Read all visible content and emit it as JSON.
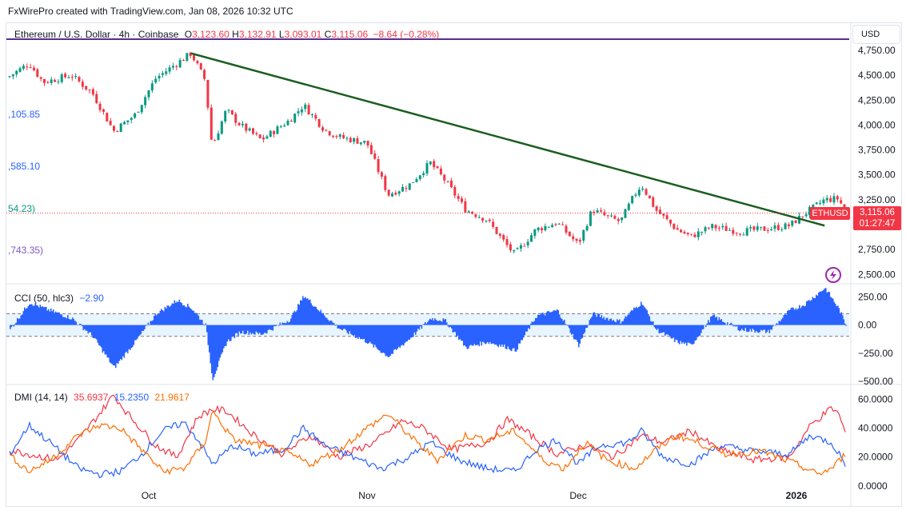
{
  "credit": "FxWirePro created with TradingView.com, Jan 08, 2026 10:32 UTC",
  "header": {
    "symbol": "Ethereum / U.S. Dollar · 4h · Coinbase",
    "o_label": "O",
    "o_value": "3,123.60",
    "h_label": "H",
    "h_value": "3,132.91",
    "l_label": "L",
    "l_value": "3,093.01",
    "c_label": "C",
    "c_value": "3,115.06",
    "change": "−8.64 (−0.28%)"
  },
  "currency_button": "USD",
  "price_tag": {
    "symbol": "ETHUSD",
    "price": "3,115.06",
    "countdown": "01:27:47"
  },
  "left_levels": [
    {
      "text": ",105.85",
      "color": "#2962ff"
    },
    {
      "text": ",585.10",
      "color": "#2962ff"
    },
    {
      "text": "54.23)",
      "color": "#089981"
    },
    {
      "text": ",743.35)",
      "color": "#7e57c2"
    }
  ],
  "cci_header": {
    "name": "CCI (50, hlc3)",
    "value": "−2.90",
    "value_color": "#2962ff"
  },
  "dmi_header": {
    "name": "DMI (14, 14)",
    "adx": "35.6937",
    "adx_color": "#f23645",
    "plus_di": "15.2350",
    "plus_di_color": "#2962ff",
    "minus_di": "21.9617",
    "minus_di_color": "#ff6d00"
  },
  "colors": {
    "up": "#089981",
    "down": "#f23645",
    "trendline": "#1b5e20",
    "cci": "#2962ff",
    "hline": "#5b2d8e"
  },
  "chart_data": {
    "type": "candlestick",
    "price_axis": {
      "ticks": [
        2500,
        2750,
        3000,
        3250,
        3500,
        3750,
        4000,
        4250,
        4500,
        4750
      ],
      "tick_labels": [
        "2,500.00",
        "2,750.00",
        "3,000.00",
        "3,250.00",
        "3,500.00",
        "3,750.00",
        "4,000.00",
        "4,250.00",
        "4,500.00",
        "4,750.00"
      ],
      "ylim": [
        2430,
        4790
      ]
    },
    "time_axis": {
      "labels": [
        "Oct",
        "Nov",
        "Dec",
        "2026"
      ]
    },
    "price_path": [
      {
        "t": "Sep 11",
        "p": 4480
      },
      {
        "t": "Sep 14",
        "p": 4620
      },
      {
        "t": "Sep 16",
        "p": 4430
      },
      {
        "t": "Sep 20",
        "p": 4500
      },
      {
        "t": "Sep 23",
        "p": 4320
      },
      {
        "t": "Sep 26",
        "p": 3940
      },
      {
        "t": "Sep 29",
        "p": 4100
      },
      {
        "t": "Oct 2",
        "p": 4470
      },
      {
        "t": "Oct 5",
        "p": 4620
      },
      {
        "t": "Oct 7",
        "p": 4720
      },
      {
        "t": "Oct 9",
        "p": 4450
      },
      {
        "t": "Oct 10",
        "p": 3780
      },
      {
        "t": "Oct 12",
        "p": 4150
      },
      {
        "t": "Oct 14",
        "p": 4000
      },
      {
        "t": "Oct 17",
        "p": 3850
      },
      {
        "t": "Oct 21",
        "p": 4050
      },
      {
        "t": "Oct 23",
        "p": 4200
      },
      {
        "t": "Oct 26",
        "p": 3950
      },
      {
        "t": "Oct 28",
        "p": 3880
      },
      {
        "t": "Nov 1",
        "p": 3820
      },
      {
        "t": "Nov 4",
        "p": 3300
      },
      {
        "t": "Nov 7",
        "p": 3400
      },
      {
        "t": "Nov 10",
        "p": 3620
      },
      {
        "t": "Nov 12",
        "p": 3450
      },
      {
        "t": "Nov 15",
        "p": 3150
      },
      {
        "t": "Nov 18",
        "p": 3050
      },
      {
        "t": "Nov 21",
        "p": 2780
      },
      {
        "t": "Nov 22",
        "p": 2700
      },
      {
        "t": "Nov 25",
        "p": 2950
      },
      {
        "t": "Nov 28",
        "p": 3020
      },
      {
        "t": "Dec 1",
        "p": 2800
      },
      {
        "t": "Dec 3",
        "p": 3150
      },
      {
        "t": "Dec 5",
        "p": 3080
      },
      {
        "t": "Dec 7",
        "p": 3030
      },
      {
        "t": "Dec 9",
        "p": 3300
      },
      {
        "t": "Dec 10",
        "p": 3400
      },
      {
        "t": "Dec 12",
        "p": 3150
      },
      {
        "t": "Dec 15",
        "p": 2950
      },
      {
        "t": "Dec 17",
        "p": 2880
      },
      {
        "t": "Dec 20",
        "p": 2980
      },
      {
        "t": "Dec 24",
        "p": 2930
      },
      {
        "t": "Dec 28",
        "p": 2960
      },
      {
        "t": "Dec 31",
        "p": 2990
      },
      {
        "t": "Jan 2",
        "p": 3100
      },
      {
        "t": "Jan 5",
        "p": 3250
      },
      {
        "t": "Jan 7",
        "p": 3260
      },
      {
        "t": "Jan 8",
        "p": 3115
      }
    ],
    "trendline": {
      "from": {
        "t": "Oct 7",
        "p": 4720
      },
      "to": {
        "t": "Jan 5",
        "p": 2990
      }
    },
    "last_price_line": 3115.06,
    "cci": {
      "ticks": [
        250,
        0,
        -250,
        -500
      ],
      "tick_labels": [
        "250.00",
        "0.00",
        "−250.00",
        "−500.00"
      ],
      "ylim": [
        -520,
        330
      ],
      "band": [
        -100,
        100
      ],
      "path": [
        {
          "t": "Sep 11",
          "v": -60
        },
        {
          "t": "Sep 14",
          "v": 200
        },
        {
          "t": "Sep 16",
          "v": 150
        },
        {
          "t": "Sep 20",
          "v": 60
        },
        {
          "t": "Sep 23",
          "v": -100
        },
        {
          "t": "Sep 26",
          "v": -380
        },
        {
          "t": "Sep 29",
          "v": -150
        },
        {
          "t": "Oct 2",
          "v": 100
        },
        {
          "t": "Oct 5",
          "v": 220
        },
        {
          "t": "Oct 7",
          "v": 150
        },
        {
          "t": "Oct 9",
          "v": 0
        },
        {
          "t": "Oct 10",
          "v": -480
        },
        {
          "t": "Oct 12",
          "v": -150
        },
        {
          "t": "Oct 14",
          "v": -60
        },
        {
          "t": "Oct 17",
          "v": -80
        },
        {
          "t": "Oct 21",
          "v": 50
        },
        {
          "t": "Oct 23",
          "v": 260
        },
        {
          "t": "Oct 26",
          "v": 80
        },
        {
          "t": "Oct 28",
          "v": -30
        },
        {
          "t": "Nov 1",
          "v": -150
        },
        {
          "t": "Nov 4",
          "v": -280
        },
        {
          "t": "Nov 7",
          "v": -120
        },
        {
          "t": "Nov 10",
          "v": 60
        },
        {
          "t": "Nov 12",
          "v": 40
        },
        {
          "t": "Nov 15",
          "v": -200
        },
        {
          "t": "Nov 18",
          "v": -150
        },
        {
          "t": "Nov 21",
          "v": -200
        },
        {
          "t": "Nov 22",
          "v": -230
        },
        {
          "t": "Nov 25",
          "v": 80
        },
        {
          "t": "Nov 28",
          "v": 130
        },
        {
          "t": "Dec 1",
          "v": -180
        },
        {
          "t": "Dec 3",
          "v": 100
        },
        {
          "t": "Dec 5",
          "v": 60
        },
        {
          "t": "Dec 7",
          "v": 30
        },
        {
          "t": "Dec 9",
          "v": 150
        },
        {
          "t": "Dec 10",
          "v": 200
        },
        {
          "t": "Dec 12",
          "v": -40
        },
        {
          "t": "Dec 15",
          "v": -150
        },
        {
          "t": "Dec 17",
          "v": -180
        },
        {
          "t": "Dec 20",
          "v": 80
        },
        {
          "t": "Dec 24",
          "v": -40
        },
        {
          "t": "Dec 28",
          "v": -60
        },
        {
          "t": "Dec 31",
          "v": 130
        },
        {
          "t": "Jan 2",
          "v": 180
        },
        {
          "t": "Jan 5",
          "v": 330
        },
        {
          "t": "Jan 7",
          "v": 140
        },
        {
          "t": "Jan 8",
          "v": -3
        }
      ]
    },
    "dmi": {
      "ticks": [
        0,
        20,
        40,
        60
      ],
      "tick_labels": [
        "0.0000",
        "20.0000",
        "40.0000",
        "60.0000"
      ],
      "ylim": [
        -4,
        68
      ],
      "series": [
        {
          "name": "ADX",
          "color": "#f23645",
          "points": [
            {
              "t": "Sep 11",
              "v": 25
            },
            {
              "t": "Sep 14",
              "v": 22
            },
            {
              "t": "Sep 18",
              "v": 18
            },
            {
              "t": "Sep 21",
              "v": 32
            },
            {
              "t": "Sep 24",
              "v": 50
            },
            {
              "t": "Sep 26",
              "v": 63
            },
            {
              "t": "Sep 28",
              "v": 50
            },
            {
              "t": "Oct 2",
              "v": 28
            },
            {
              "t": "Oct 5",
              "v": 20
            },
            {
              "t": "Oct 8",
              "v": 48
            },
            {
              "t": "Oct 10",
              "v": 53
            },
            {
              "t": "Oct 12",
              "v": 52
            },
            {
              "t": "Oct 16",
              "v": 35
            },
            {
              "t": "Oct 20",
              "v": 22
            },
            {
              "t": "Oct 24",
              "v": 35
            },
            {
              "t": "Oct 28",
              "v": 20
            },
            {
              "t": "Nov 2",
              "v": 30
            },
            {
              "t": "Nov 6",
              "v": 45
            },
            {
              "t": "Nov 9",
              "v": 40
            },
            {
              "t": "Nov 13",
              "v": 25
            },
            {
              "t": "Nov 18",
              "v": 30
            },
            {
              "t": "Nov 21",
              "v": 46
            },
            {
              "t": "Nov 24",
              "v": 36
            },
            {
              "t": "Nov 28",
              "v": 22
            },
            {
              "t": "Dec 2",
              "v": 28
            },
            {
              "t": "Dec 6",
              "v": 20
            },
            {
              "t": "Dec 10",
              "v": 35
            },
            {
              "t": "Dec 13",
              "v": 30
            },
            {
              "t": "Dec 17",
              "v": 38
            },
            {
              "t": "Dec 21",
              "v": 25
            },
            {
              "t": "Dec 26",
              "v": 18
            },
            {
              "t": "Dec 31",
              "v": 20
            },
            {
              "t": "Jan 3",
              "v": 42
            },
            {
              "t": "Jan 6",
              "v": 54
            },
            {
              "t": "Jan 7",
              "v": 50
            },
            {
              "t": "Jan 8",
              "v": 36
            }
          ]
        },
        {
          "name": "+DI",
          "color": "#2962ff",
          "points": [
            {
              "t": "Sep 11",
              "v": 20
            },
            {
              "t": "Sep 14",
              "v": 42
            },
            {
              "t": "Sep 17",
              "v": 30
            },
            {
              "t": "Sep 21",
              "v": 12
            },
            {
              "t": "Sep 24",
              "v": 8
            },
            {
              "t": "Sep 27",
              "v": 10
            },
            {
              "t": "Sep 30",
              "v": 22
            },
            {
              "t": "Oct 3",
              "v": 38
            },
            {
              "t": "Oct 6",
              "v": 44
            },
            {
              "t": "Oct 8",
              "v": 32
            },
            {
              "t": "Oct 10",
              "v": 15
            },
            {
              "t": "Oct 13",
              "v": 28
            },
            {
              "t": "Oct 16",
              "v": 22
            },
            {
              "t": "Oct 20",
              "v": 25
            },
            {
              "t": "Oct 23",
              "v": 40
            },
            {
              "t": "Oct 26",
              "v": 28
            },
            {
              "t": "Oct 30",
              "v": 20
            },
            {
              "t": "Nov 3",
              "v": 12
            },
            {
              "t": "Nov 7",
              "v": 20
            },
            {
              "t": "Nov 10",
              "v": 30
            },
            {
              "t": "Nov 14",
              "v": 18
            },
            {
              "t": "Nov 18",
              "v": 12
            },
            {
              "t": "Nov 22",
              "v": 10
            },
            {
              "t": "Nov 25",
              "v": 25
            },
            {
              "t": "Nov 28",
              "v": 32
            },
            {
              "t": "Dec 1",
              "v": 15
            },
            {
              "t": "Dec 4",
              "v": 28
            },
            {
              "t": "Dec 8",
              "v": 30
            },
            {
              "t": "Dec 10",
              "v": 38
            },
            {
              "t": "Dec 13",
              "v": 20
            },
            {
              "t": "Dec 17",
              "v": 15
            },
            {
              "t": "Dec 21",
              "v": 28
            },
            {
              "t": "Dec 26",
              "v": 24
            },
            {
              "t": "Dec 31",
              "v": 22
            },
            {
              "t": "Jan 3",
              "v": 35
            },
            {
              "t": "Jan 6",
              "v": 30
            },
            {
              "t": "Jan 8",
              "v": 15
            }
          ]
        },
        {
          "name": "−DI",
          "color": "#ff6d00",
          "points": [
            {
              "t": "Sep 11",
              "v": 22
            },
            {
              "t": "Sep 14",
              "v": 10
            },
            {
              "t": "Sep 17",
              "v": 18
            },
            {
              "t": "Sep 21",
              "v": 35
            },
            {
              "t": "Sep 24",
              "v": 42
            },
            {
              "t": "Sep 27",
              "v": 40
            },
            {
              "t": "Sep 30",
              "v": 25
            },
            {
              "t": "Oct 3",
              "v": 10
            },
            {
              "t": "Oct 6",
              "v": 12
            },
            {
              "t": "Oct 9",
              "v": 30
            },
            {
              "t": "Oct 10",
              "v": 52
            },
            {
              "t": "Oct 13",
              "v": 32
            },
            {
              "t": "Oct 17",
              "v": 28
            },
            {
              "t": "Oct 21",
              "v": 22
            },
            {
              "t": "Oct 24",
              "v": 15
            },
            {
              "t": "Oct 28",
              "v": 25
            },
            {
              "t": "Nov 1",
              "v": 40
            },
            {
              "t": "Nov 4",
              "v": 50
            },
            {
              "t": "Nov 8",
              "v": 30
            },
            {
              "t": "Nov 11",
              "v": 18
            },
            {
              "t": "Nov 15",
              "v": 35
            },
            {
              "t": "Nov 18",
              "v": 32
            },
            {
              "t": "Nov 22",
              "v": 38
            },
            {
              "t": "Nov 26",
              "v": 18
            },
            {
              "t": "Nov 29",
              "v": 12
            },
            {
              "t": "Dec 2",
              "v": 30
            },
            {
              "t": "Dec 5",
              "v": 18
            },
            {
              "t": "Dec 9",
              "v": 12
            },
            {
              "t": "Dec 12",
              "v": 25
            },
            {
              "t": "Dec 15",
              "v": 35
            },
            {
              "t": "Dec 18",
              "v": 30
            },
            {
              "t": "Dec 22",
              "v": 22
            },
            {
              "t": "Dec 27",
              "v": 24
            },
            {
              "t": "Jan 1",
              "v": 15
            },
            {
              "t": "Jan 4",
              "v": 8
            },
            {
              "t": "Jan 6",
              "v": 12
            },
            {
              "t": "Jan 8",
              "v": 22
            }
          ]
        }
      ]
    }
  }
}
